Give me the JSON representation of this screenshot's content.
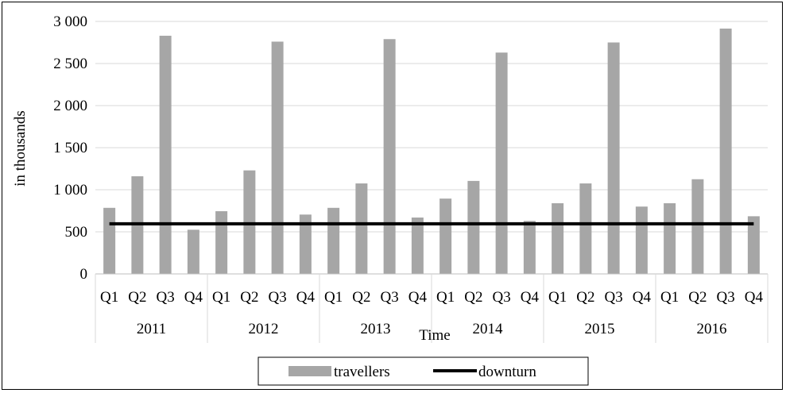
{
  "chart_data": {
    "type": "bar",
    "title": "",
    "xlabel": "Time",
    "ylabel": "in thousands",
    "ylim": [
      0,
      3000
    ],
    "yticks": [
      0,
      500,
      1000,
      1500,
      2000,
      2500,
      3000
    ],
    "ytick_labels": [
      "0",
      "500",
      "1 000",
      "1 500",
      "2 000",
      "2 500",
      "3 000"
    ],
    "grid": true,
    "legend_position": "bottom",
    "years": [
      "2011",
      "2012",
      "2013",
      "2014",
      "2015",
      "2016"
    ],
    "quarters": [
      "Q1",
      "Q2",
      "Q3",
      "Q4"
    ],
    "series": [
      {
        "name": "travellers",
        "kind": "bar",
        "color": "#a6a6a6",
        "values": [
          785,
          1160,
          2830,
          525,
          745,
          1230,
          2760,
          705,
          785,
          1075,
          2790,
          670,
          895,
          1105,
          2630,
          630,
          840,
          1075,
          2750,
          800,
          840,
          1125,
          2915,
          685
        ]
      },
      {
        "name": "downturn",
        "kind": "line",
        "color": "#000000",
        "value": 595
      }
    ]
  }
}
